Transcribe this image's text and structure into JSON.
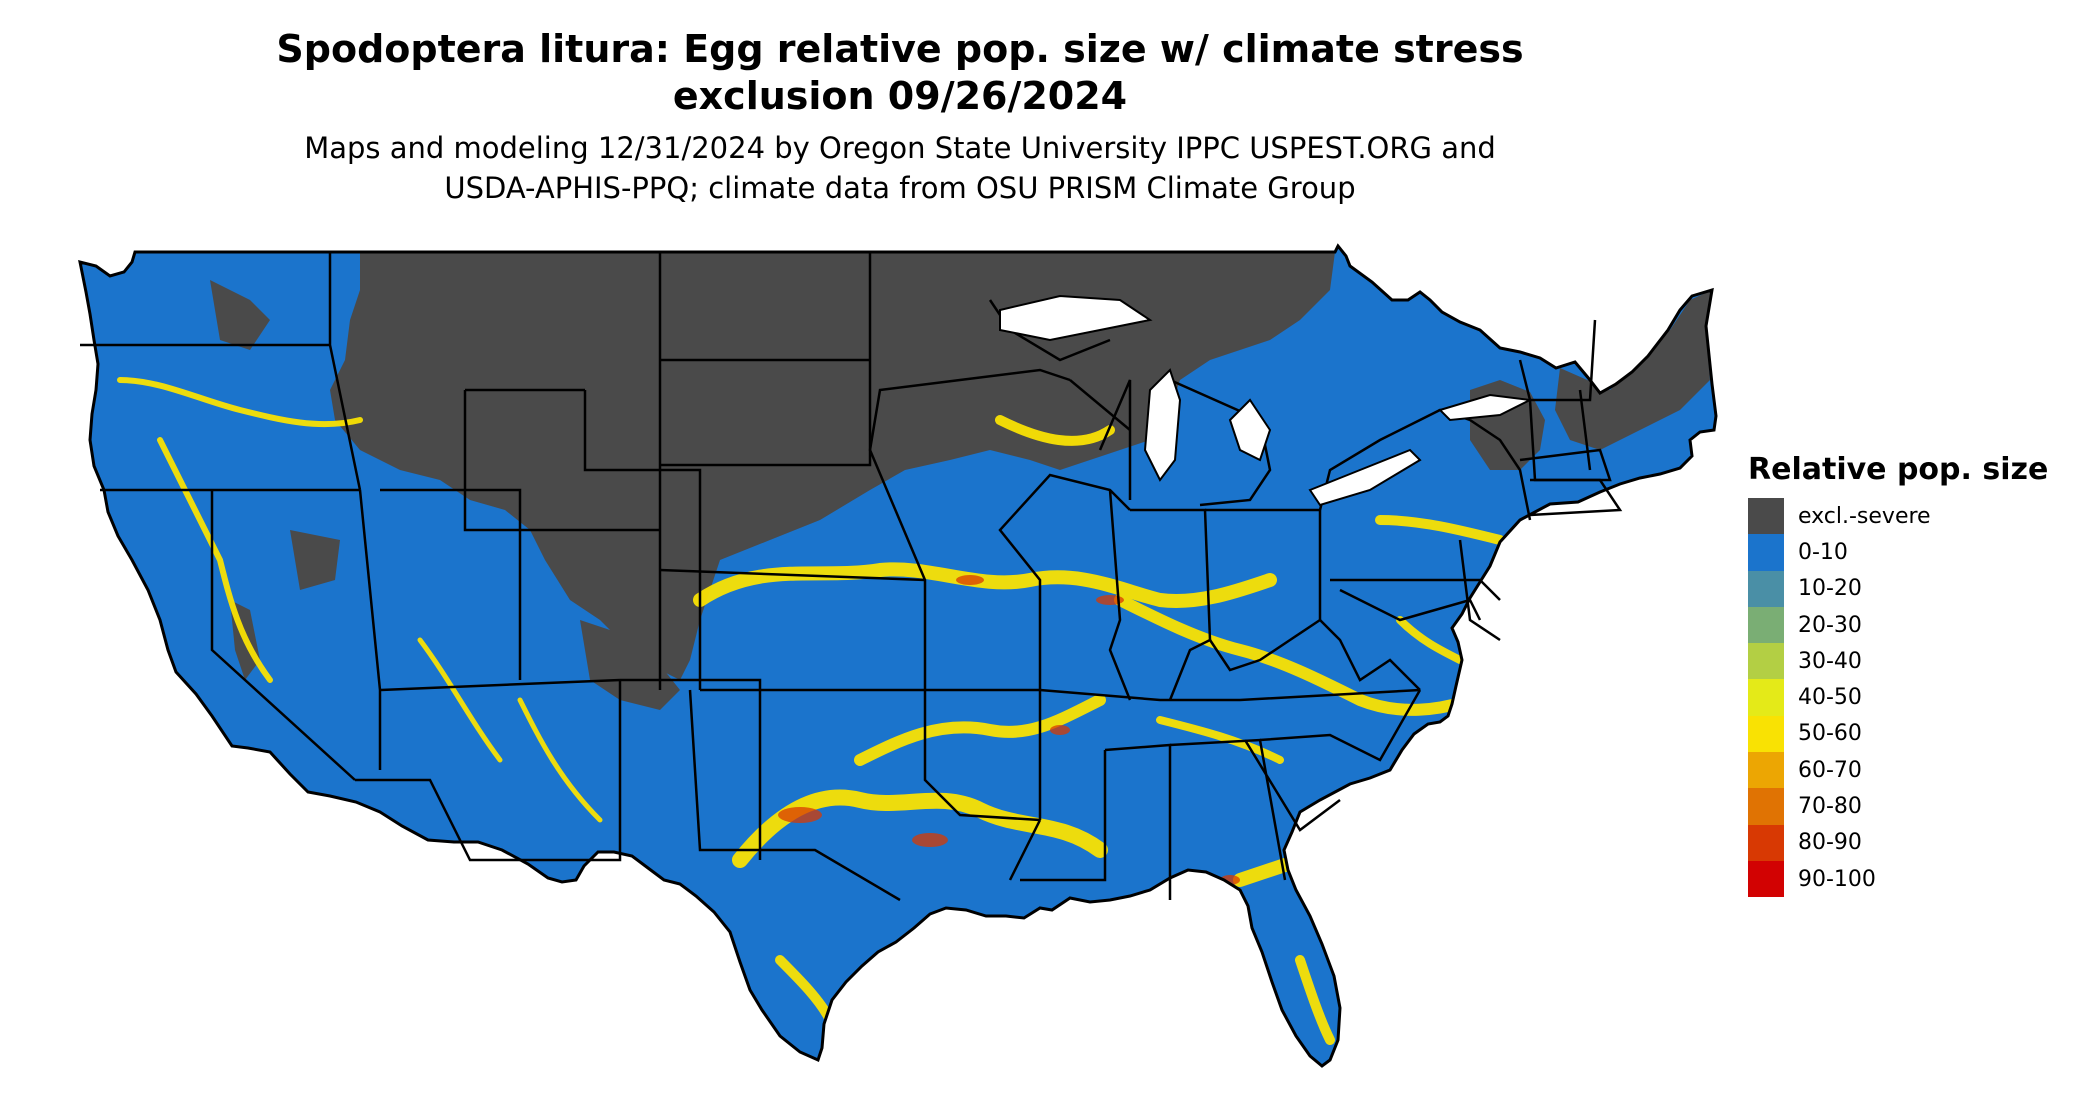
{
  "title_line1": "Spodoptera litura: Egg relative pop. size w/ climate stress",
  "title_line2": "exclusion 09/26/2024",
  "subtitle_line1": "Maps and modeling 12/31/2024 by Oregon State University IPPC USPEST.ORG and",
  "subtitle_line2": "USDA-APHIS-PPQ; climate data from OSU PRISM Climate Group",
  "legend": {
    "title": "Relative pop. size",
    "items": [
      {
        "label": "excl.-severe",
        "color": "#4a4a4a"
      },
      {
        "label": "0-10",
        "color": "#1b74cc"
      },
      {
        "label": "10-20",
        "color": "#4a8fa6"
      },
      {
        "label": "20-30",
        "color": "#7aae74"
      },
      {
        "label": "30-40",
        "color": "#b3cf44"
      },
      {
        "label": "40-50",
        "color": "#e4ea18"
      },
      {
        "label": "50-60",
        "color": "#f9e203"
      },
      {
        "label": "60-70",
        "color": "#eca603"
      },
      {
        "label": "70-80",
        "color": "#e07303"
      },
      {
        "label": "80-90",
        "color": "#d83903"
      },
      {
        "label": "90-100",
        "color": "#d20202"
      }
    ]
  },
  "map_colors": {
    "excluded": "#4a4a4a",
    "low": "#1b74cc",
    "mid": "#f9e203",
    "high": "#d83903",
    "border": "#000000"
  }
}
